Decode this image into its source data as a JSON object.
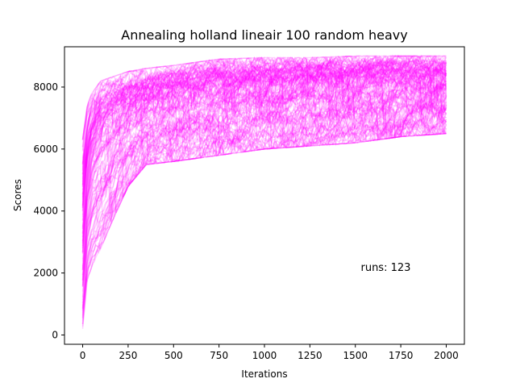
{
  "chart_data": {
    "type": "line",
    "title": "Annealing holland lineair 100 random heavy",
    "xlabel": "Iterations",
    "ylabel": "Scores",
    "xlim": [
      -100,
      2100
    ],
    "ylim": [
      -300,
      9300
    ],
    "x_ticks": [
      0,
      250,
      500,
      750,
      1000,
      1250,
      1500,
      1750,
      2000
    ],
    "y_ticks": [
      0,
      2000,
      4000,
      6000,
      8000
    ],
    "grid": false,
    "legend": "none",
    "annotation": {
      "text": "runs: 123",
      "x": 1530,
      "y": 2200
    },
    "line_color": "#ff00ff",
    "line_alpha": 0.18,
    "series_count": 123,
    "x_range": [
      0,
      2000
    ],
    "envelope": {
      "x": [
        0,
        25,
        50,
        100,
        150,
        250,
        350,
        500,
        750,
        1000,
        1250,
        1500,
        1750,
        2000
      ],
      "upper": [
        6300,
        7400,
        7800,
        8200,
        8300,
        8500,
        8600,
        8700,
        8900,
        8950,
        8950,
        9000,
        9000,
        9000
      ],
      "median": [
        3500,
        5200,
        6000,
        6700,
        7000,
        7400,
        7600,
        7800,
        8000,
        8100,
        8200,
        8200,
        8250,
        8250
      ],
      "lower": [
        200,
        1800,
        2200,
        2800,
        3500,
        4800,
        5500,
        5600,
        5800,
        6000,
        6100,
        6200,
        6400,
        6500
      ]
    }
  }
}
